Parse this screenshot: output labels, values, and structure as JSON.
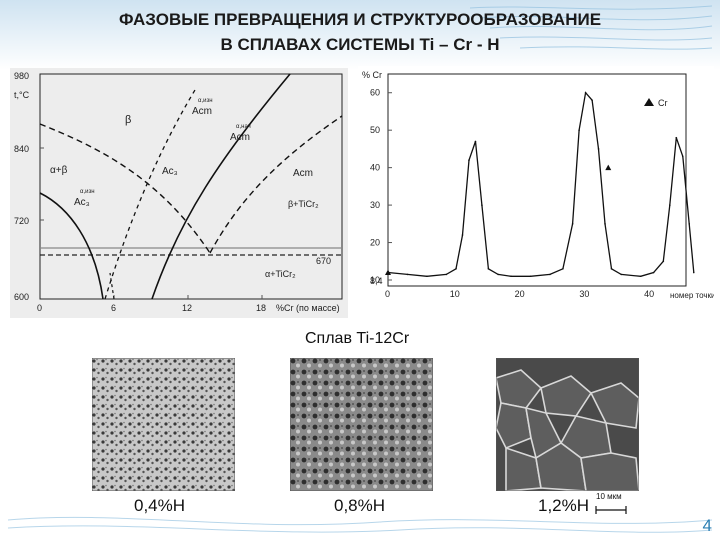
{
  "slide": {
    "title_line1": "ФАЗОВЫЕ ПРЕВРАЩЕНИЯ И СТРУКТУРООБРАЗОВАНИЕ",
    "title_line2": "В СПЛАВАХ СИСТЕМЫ Ti – Cr - H",
    "alloy_label": "Сплав Ti-12Cr",
    "page_number": "4",
    "accent_color": "#2b7fb3"
  },
  "phase_diagram": {
    "y_label": "t,°C",
    "x_label": "%Cr (по массе)",
    "y_ticks": [
      "980",
      "840",
      "720",
      "600"
    ],
    "x_ticks": [
      "0",
      "6",
      "12",
      "18"
    ],
    "line_label_670": "670",
    "region_beta": "β",
    "region_alpha_beta": "α+β",
    "region_beta_ticr": "β+TiCr₂",
    "region_alpha_ticr": "α+TiCr₂",
    "acm_upper": "Acm",
    "acm_upper_sup": "α,изн",
    "acm_mid": "Acm",
    "acm_mid_sup": "α,нач",
    "ac3": "Ac₃",
    "acm_right": "Acm",
    "ac3_left": "Ac₃",
    "ac3_left_sup": "α,изн"
  },
  "chart_data": {
    "type": "line",
    "title": "",
    "xlabel": "номер точки",
    "ylabel": "% Cr",
    "x_ticks": [
      "0",
      "10",
      "20",
      "30",
      "40"
    ],
    "y_ticks": [
      "60",
      "50",
      "40",
      "30",
      "20",
      "10"
    ],
    "y_extra_tick": "8,4",
    "xlim": [
      0,
      46
    ],
    "ylim": [
      8.4,
      65
    ],
    "legend": "Cr",
    "legend_position": "top-right",
    "series": [
      {
        "name": "Cr",
        "x": [
          0,
          3,
          6,
          9,
          10.5,
          11.5,
          12.5,
          13.5,
          14.5,
          15.5,
          17,
          19,
          22,
          25,
          27,
          28.5,
          29.5,
          30.5,
          31.5,
          32.5,
          33.5,
          34.5,
          36,
          39,
          41,
          42.5,
          43.5,
          44.5,
          45.5,
          46.5,
          47.5
        ],
        "y": [
          12,
          11.5,
          11,
          11.5,
          13,
          22,
          42,
          47,
          30,
          13,
          11.5,
          11,
          11,
          11.5,
          13,
          25,
          50,
          60,
          58,
          45,
          25,
          13,
          11.5,
          11,
          12,
          15,
          30,
          48,
          43,
          25,
          12
        ]
      }
    ]
  },
  "micrographs": [
    {
      "label": "0,4%H"
    },
    {
      "label": "0,8%H"
    },
    {
      "label": "1,2%H"
    }
  ],
  "scale_bar": "10 мкм"
}
